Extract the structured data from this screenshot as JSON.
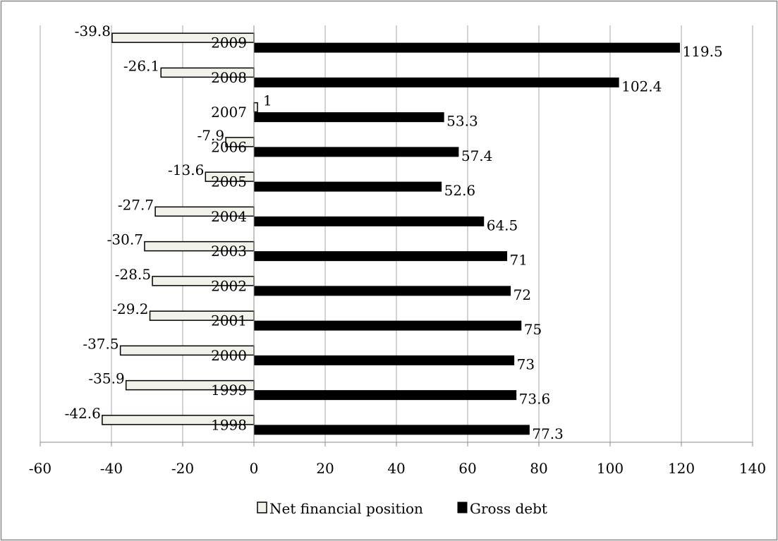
{
  "chart_data": {
    "type": "bar",
    "orientation": "horizontal",
    "categories": [
      "1998",
      "1999",
      "2000",
      "2001",
      "2002",
      "2003",
      "2004",
      "2005",
      "2006",
      "2007",
      "2008",
      "2009"
    ],
    "series": [
      {
        "name": "Net financial position",
        "color": "#f2f2ea",
        "outline": "#000000",
        "values": [
          -42.6,
          -35.9,
          -37.5,
          -29.2,
          -28.5,
          -30.7,
          -27.7,
          -13.6,
          -7.9,
          1,
          -26.1,
          -39.8
        ]
      },
      {
        "name": "Gross debt",
        "color": "#000000",
        "outline": "#000000",
        "values": [
          77.3,
          73.6,
          73,
          75,
          72,
          71,
          64.5,
          52.6,
          57.4,
          53.3,
          102.4,
          119.5
        ]
      }
    ],
    "data_labels": {
      "Net financial position": [
        "-42.6",
        "-35.9",
        "-37.5",
        "-29.2",
        "-28.5",
        "-30.7",
        "-27.7",
        "-13.6",
        "-7.9",
        "1",
        "-26.1",
        "-39.8"
      ],
      "Gross debt": [
        "77.3",
        "73.6",
        "73",
        "75",
        "72",
        "71",
        "64.5",
        "52.6",
        "57.4",
        "53.3",
        "102.4",
        "119.5"
      ]
    },
    "xlim": [
      -60,
      140
    ],
    "xticks": [
      "-60",
      "-40",
      "-20",
      "0",
      "20",
      "40",
      "60",
      "80",
      "100",
      "120",
      "140"
    ],
    "grid": "vertical",
    "legend": "bottom",
    "title": "",
    "xlabel": "",
    "ylabel": ""
  }
}
